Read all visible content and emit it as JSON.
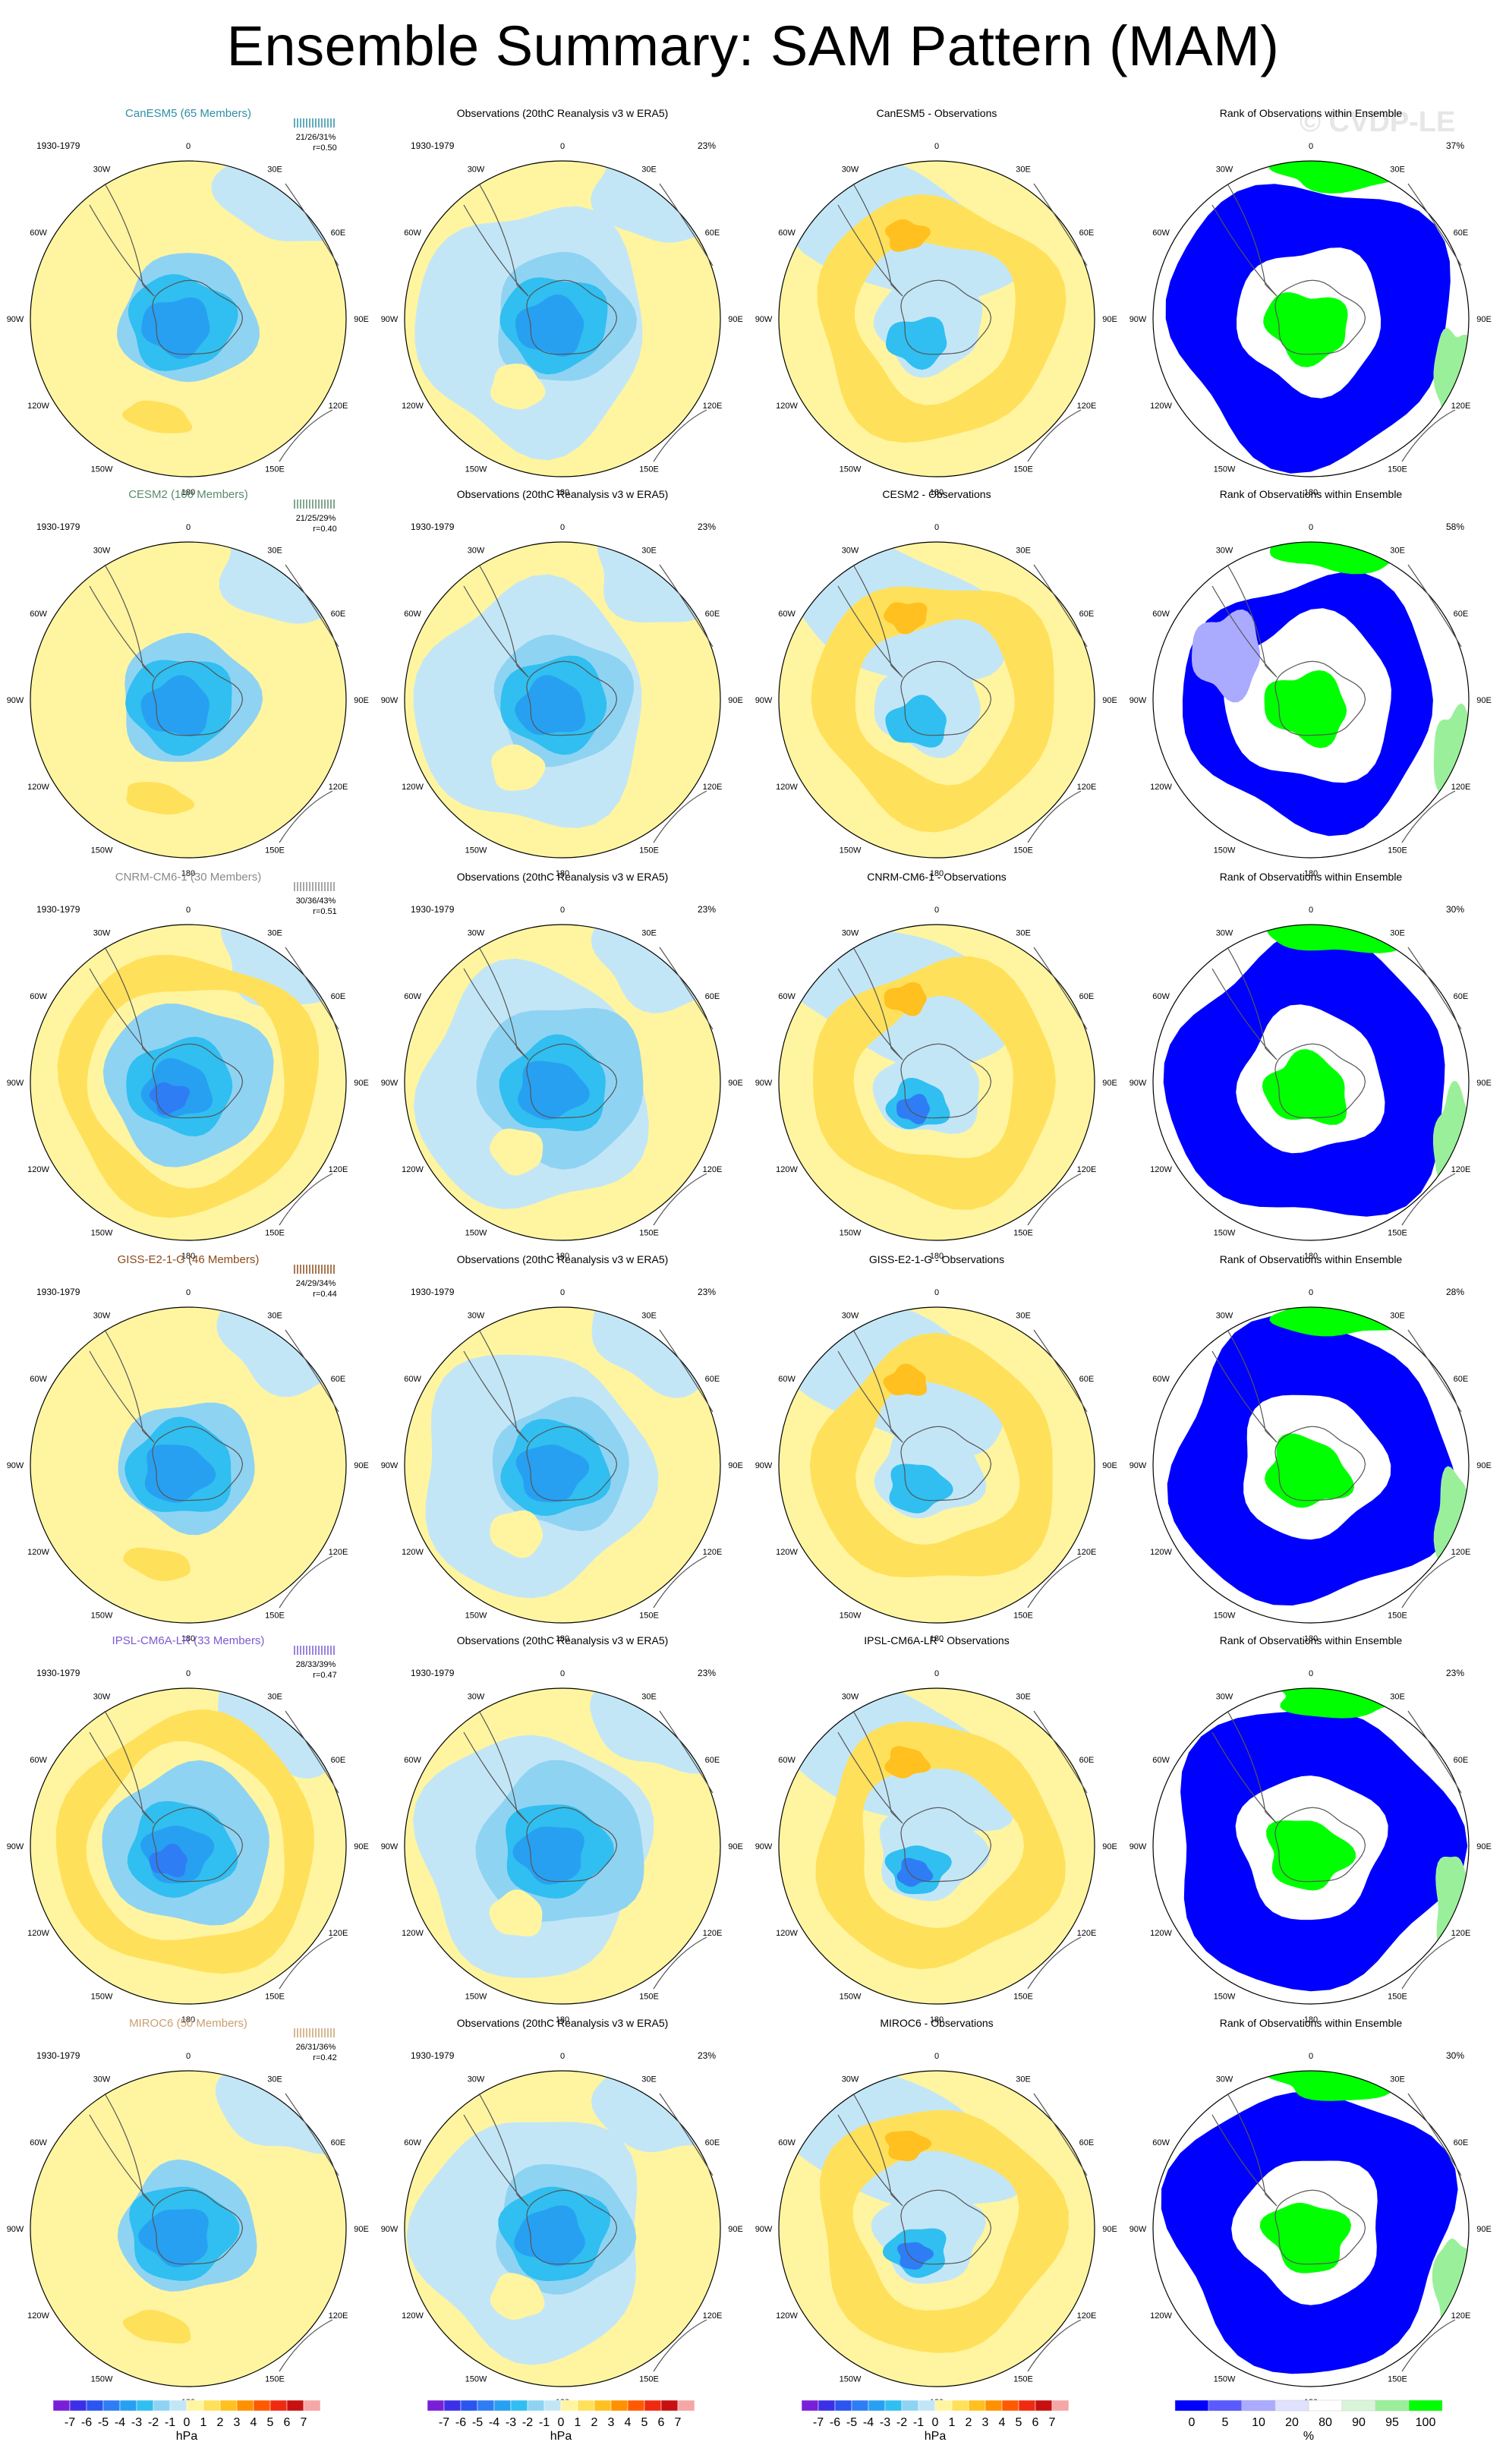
{
  "title": "Ensemble Summary: SAM Pattern (MAM)",
  "watermark": "© CVDP-LE",
  "period": "1930-1979",
  "obs_title": "Observations (20thC Reanalysis v3 w ERA5)",
  "obs_percent": "23%",
  "rank_title": "Rank of Observations within Ensemble",
  "diff_suffix": " - Observations",
  "lon_labels": {
    "n0": "0",
    "n30e": "30E",
    "n60e": "60E",
    "n90e": "90E",
    "n120e": "120E",
    "n150e": "150E",
    "n180": "180",
    "n150w": "150W",
    "n120w": "120W",
    "n90w": "90W",
    "n60w": "60W",
    "n30w": "30W"
  },
  "colors": {
    "ocean_light": "#b4dcf0",
    "land_light": "#fff5a0",
    "accent_model_text": "#2e8fa6"
  },
  "rows": [
    {
      "model": "CanESM5",
      "members": "CanESM5 (65 Members)",
      "model_color": "#2e8fa6",
      "stats": "21/26/31%",
      "r": "r=0.50",
      "rank_pct": "37%"
    },
    {
      "model": "CESM2",
      "members": "CESM2 (100 Members)",
      "model_color": "#5a8a6a",
      "stats": "21/25/29%",
      "r": "r=0.40",
      "rank_pct": "58%"
    },
    {
      "model": "CNRM-CM6-1",
      "members": "CNRM-CM6-1 (30 Members)",
      "model_color": "#8a8a8a",
      "stats": "30/36/43%",
      "r": "r=0.51",
      "rank_pct": "30%"
    },
    {
      "model": "GISS-E2-1-G",
      "members": "GISS-E2-1-G (46 Members)",
      "model_color": "#8b4a1a",
      "stats": "24/29/34%",
      "r": "r=0.44",
      "rank_pct": "28%"
    },
    {
      "model": "IPSL-CM6A-LR",
      "members": "IPSL-CM6A-LR (33 Members)",
      "model_color": "#7a5ad0",
      "stats": "28/33/39%",
      "r": "r=0.47",
      "rank_pct": "23%"
    },
    {
      "model": "MIROC6",
      "members": "MIROC6 (50 Members)",
      "model_color": "#c8a070",
      "stats": "26/31/36%",
      "r": "r=0.42",
      "rank_pct": "30%"
    }
  ],
  "hpa_colorbar": {
    "unit": "hPa",
    "labels": [
      "-7",
      "-6",
      "-5",
      "-4",
      "-3",
      "-2",
      "-1",
      "0",
      "1",
      "2",
      "3",
      "4",
      "5",
      "6",
      "7"
    ],
    "colors": [
      "#7a1fd8",
      "#3c2fe8",
      "#2a55f0",
      "#2f7df5",
      "#27a0f2",
      "#30bff0",
      "#8fd3f3",
      "#c3e6f7",
      "#fff5a0",
      "#ffe05a",
      "#ffc020",
      "#ff9000",
      "#ff5a00",
      "#f02a10",
      "#c81010",
      "#f5a6a6"
    ]
  },
  "rank_colorbar": {
    "unit": "%",
    "labels": [
      "0",
      "5",
      "10",
      "20",
      "80",
      "90",
      "95",
      "100"
    ],
    "colors": [
      "#0000ff",
      "#5a5aff",
      "#aaaaff",
      "#e0e0ff",
      "#ffffff",
      "#d8f5d8",
      "#9af09a",
      "#00ff00"
    ]
  }
}
